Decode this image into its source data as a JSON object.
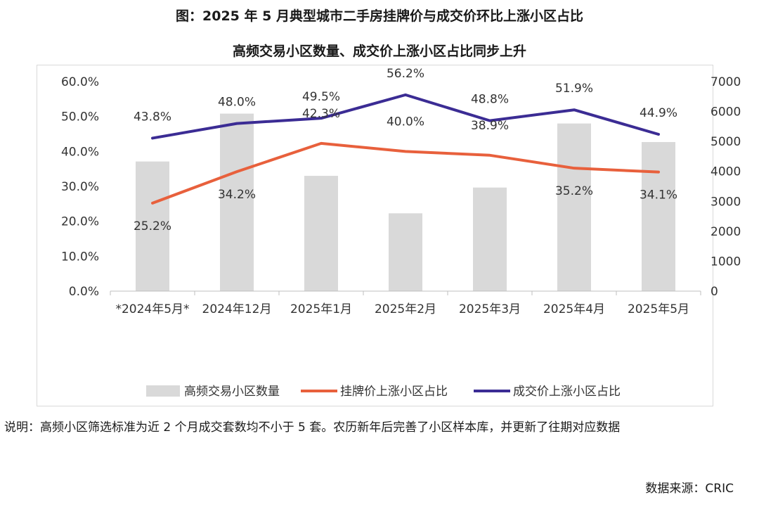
{
  "figure": {
    "title": "图：2025 年 5 月典型城市二手房挂牌价与成交价环比上涨小区占比",
    "note": "说明：高频小区筛选标准为近 2 个月成交套数均不小于 5 套。农历新年后完善了小区样本库，并更新了往期对应数据",
    "source": "数据来源：CRIC"
  },
  "chart_data": {
    "type": "bar+line",
    "title": "高频交易小区数量、成交价上涨小区占比同步上升",
    "categories": [
      "*2024年5月*",
      "2024年12月",
      "2025年1月",
      "2025年2月",
      "2025年3月",
      "2025年4月",
      "2025年5月"
    ],
    "left_axis": {
      "ylim": [
        0,
        60
      ],
      "ticks": [
        "0.0%",
        "10.0%",
        "20.0%",
        "30.0%",
        "40.0%",
        "50.0%",
        "60.0%"
      ]
    },
    "right_axis": {
      "ylim": [
        0,
        7000
      ],
      "ticks": [
        "0",
        "1000",
        "2000",
        "3000",
        "4000",
        "5000",
        "6000",
        "7000"
      ]
    },
    "series": [
      {
        "name": "高频交易小区数量",
        "kind": "bar",
        "axis": "right",
        "color": "#d9d9d9",
        "values": [
          4330,
          5930,
          3850,
          2600,
          3460,
          5600,
          4980
        ]
      },
      {
        "name": "挂牌价上涨小区占比",
        "kind": "line",
        "axis": "left",
        "color": "#e8603c",
        "values": [
          25.2,
          34.2,
          42.3,
          40.0,
          38.9,
          35.2,
          34.1
        ],
        "labels": [
          "25.2%",
          "34.2%",
          "42.3%",
          "40.0%",
          "38.9%",
          "35.2%",
          "34.1%"
        ]
      },
      {
        "name": "成交价上涨小区占比",
        "kind": "line",
        "axis": "left",
        "color": "#3b2c94",
        "values": [
          43.8,
          48.0,
          49.5,
          56.2,
          48.8,
          51.9,
          44.9
        ],
        "labels": [
          "43.8%",
          "48.0%",
          "49.5%",
          "56.2%",
          "48.8%",
          "51.9%",
          "44.9%"
        ]
      }
    ],
    "grid": false,
    "legend_position": "bottom"
  }
}
